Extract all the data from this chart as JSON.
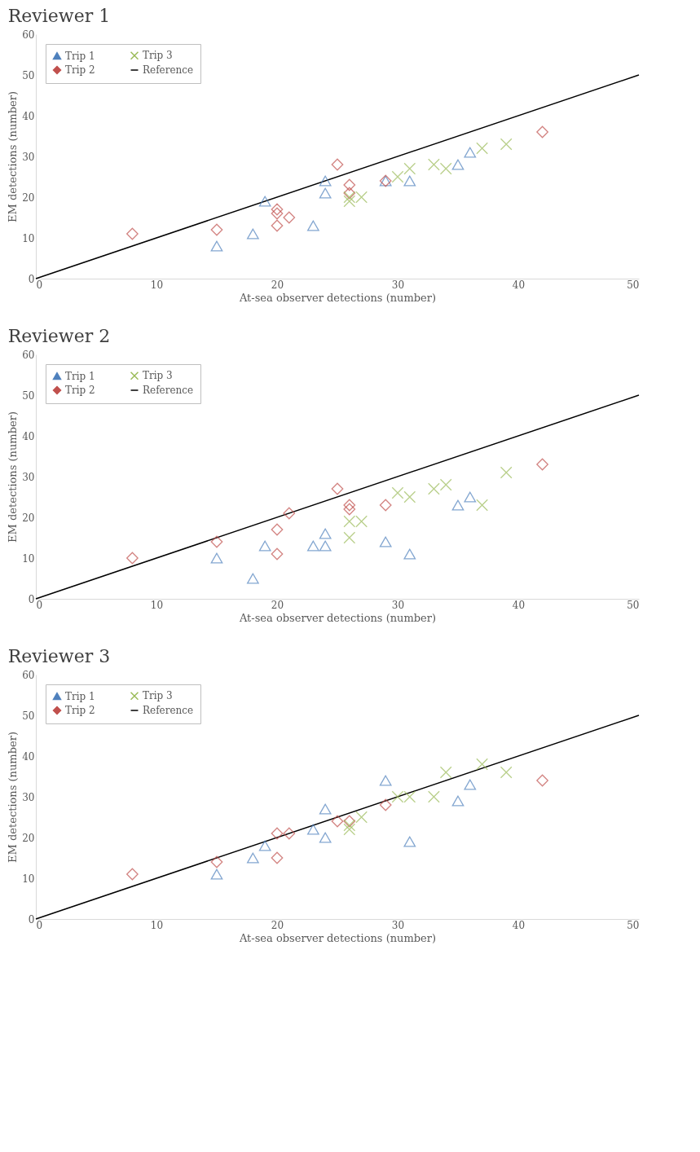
{
  "chart_data": [
    {
      "type": "scatter",
      "title": "Reviewer 1",
      "xlabel": "At-sea observer detections (number)",
      "ylabel": "EM detections (number)",
      "xlim": [
        0,
        50
      ],
      "ylim": [
        0,
        60
      ],
      "xticks": [
        0,
        10,
        20,
        30,
        40,
        50
      ],
      "yticks": [
        0,
        10,
        20,
        30,
        40,
        50,
        60
      ],
      "legend": "top left",
      "grid": false,
      "series": [
        {
          "name": "Trip 1",
          "color": "#4f81bd",
          "marker": "triangle",
          "x": [
            15,
            18,
            19,
            23,
            24,
            24,
            29,
            31,
            35,
            36
          ],
          "values": [
            8,
            11,
            19,
            13,
            24,
            21,
            24,
            24,
            28,
            31
          ]
        },
        {
          "name": "Trip 2",
          "color": "#c0504d",
          "marker": "diamond",
          "x": [
            8,
            15,
            20,
            20,
            20,
            21,
            25,
            26,
            26,
            29,
            42
          ],
          "values": [
            11,
            12,
            17,
            16,
            13,
            15,
            28,
            23,
            21,
            24,
            36
          ]
        },
        {
          "name": "Trip 3",
          "color": "#9bbb59",
          "marker": "cross",
          "x": [
            26,
            26,
            27,
            30,
            31,
            33,
            34,
            37,
            39
          ],
          "values": [
            20,
            19,
            20,
            25,
            27,
            28,
            27,
            32,
            33
          ]
        },
        {
          "name": "Reference",
          "type": "line",
          "color": "#000000",
          "x": [
            0,
            50
          ],
          "values": [
            0,
            50
          ]
        }
      ]
    },
    {
      "type": "scatter",
      "title": "Reviewer 2",
      "xlabel": "At-sea observer detections (number)",
      "ylabel": "EM detections (number)",
      "xlim": [
        0,
        50
      ],
      "ylim": [
        0,
        60
      ],
      "xticks": [
        0,
        10,
        20,
        30,
        40,
        50
      ],
      "yticks": [
        0,
        10,
        20,
        30,
        40,
        50,
        60
      ],
      "legend": "top left",
      "grid": false,
      "series": [
        {
          "name": "Trip 1",
          "color": "#4f81bd",
          "marker": "triangle",
          "x": [
            15,
            18,
            19,
            23,
            24,
            24,
            29,
            31,
            35,
            36
          ],
          "values": [
            10,
            5,
            13,
            13,
            16,
            13,
            14,
            11,
            23,
            25
          ]
        },
        {
          "name": "Trip 2",
          "color": "#c0504d",
          "marker": "diamond",
          "x": [
            8,
            15,
            20,
            20,
            21,
            25,
            26,
            26,
            29,
            42
          ],
          "values": [
            10,
            14,
            17,
            11,
            21,
            27,
            23,
            22,
            23,
            33
          ]
        },
        {
          "name": "Trip 3",
          "color": "#9bbb59",
          "marker": "cross",
          "x": [
            26,
            26,
            27,
            30,
            31,
            33,
            34,
            37,
            39
          ],
          "values": [
            19,
            15,
            19,
            26,
            25,
            27,
            28,
            23,
            31
          ]
        },
        {
          "name": "Reference",
          "type": "line",
          "color": "#000000",
          "x": [
            0,
            50
          ],
          "values": [
            0,
            50
          ]
        }
      ]
    },
    {
      "type": "scatter",
      "title": "Reviewer 3",
      "xlabel": "At-sea observer detections (number)",
      "ylabel": "EM detections (number)",
      "xlim": [
        0,
        50
      ],
      "ylim": [
        0,
        60
      ],
      "xticks": [
        0,
        10,
        20,
        30,
        40,
        50
      ],
      "yticks": [
        0,
        10,
        20,
        30,
        40,
        50,
        60
      ],
      "legend": "top left",
      "grid": false,
      "series": [
        {
          "name": "Trip 1",
          "color": "#4f81bd",
          "marker": "triangle",
          "x": [
            15,
            18,
            19,
            23,
            24,
            24,
            29,
            31,
            35,
            36
          ],
          "values": [
            11,
            15,
            18,
            22,
            27,
            20,
            34,
            19,
            29,
            33
          ]
        },
        {
          "name": "Trip 2",
          "color": "#c0504d",
          "marker": "diamond",
          "x": [
            8,
            15,
            20,
            20,
            21,
            25,
            26,
            29,
            42
          ],
          "values": [
            11,
            14,
            21,
            15,
            21,
            24,
            24,
            28,
            34
          ]
        },
        {
          "name": "Trip 3",
          "color": "#9bbb59",
          "marker": "cross",
          "x": [
            26,
            26,
            27,
            30,
            31,
            33,
            34,
            37,
            39
          ],
          "values": [
            23,
            22,
            25,
            30,
            30,
            30,
            36,
            38,
            36
          ]
        },
        {
          "name": "Reference",
          "type": "line",
          "color": "#000000",
          "x": [
            0,
            50
          ],
          "values": [
            0,
            50
          ]
        }
      ]
    }
  ]
}
